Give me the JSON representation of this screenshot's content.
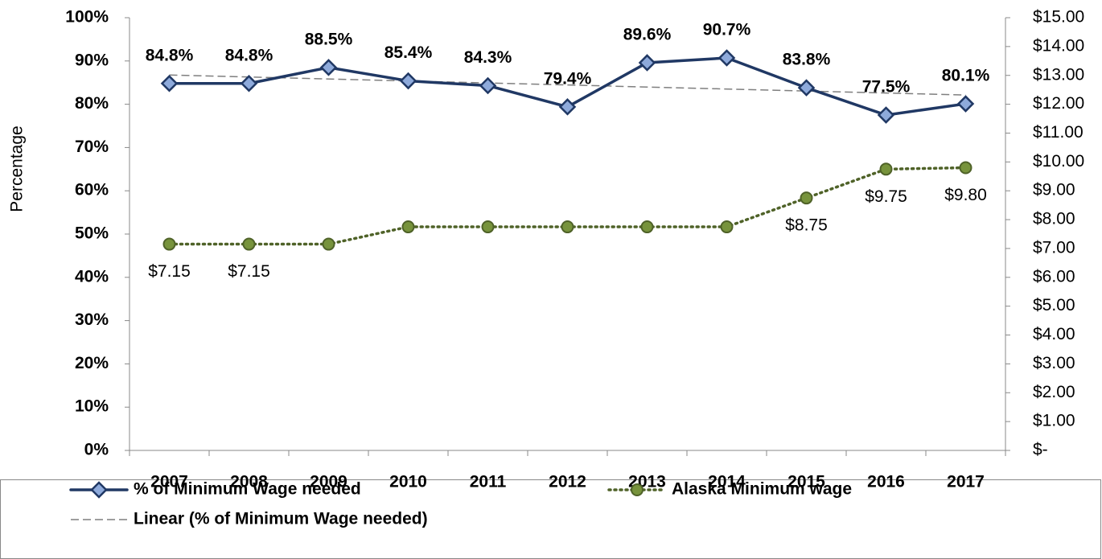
{
  "chart_data": {
    "type": "line",
    "y_axis_label": "Percentage",
    "categories": [
      "2007",
      "2008",
      "2009",
      "2010",
      "2011",
      "2012",
      "2013",
      "2014",
      "2015",
      "2016",
      "2017"
    ],
    "series": [
      {
        "name": "% of Minimum Wage needed",
        "color": "#203864",
        "marker_fill": "#8eaadb",
        "values": [
          84.8,
          84.8,
          88.5,
          85.4,
          84.3,
          79.4,
          89.6,
          90.7,
          83.8,
          77.5,
          80.1
        ],
        "value_labels": [
          "84.8%",
          "84.8%",
          "88.5%",
          "85.4%",
          "84.3%",
          "79.4%",
          "89.6%",
          "90.7%",
          "83.8%",
          "77.5%",
          "80.1%"
        ]
      },
      {
        "name": "Alaska Minimum wage",
        "color": "#4f6228",
        "marker_fill": "#77933c",
        "axis": "y2",
        "values": [
          7.15,
          7.15,
          7.15,
          7.75,
          7.75,
          7.75,
          7.75,
          7.75,
          8.75,
          9.75,
          9.8
        ],
        "value_labels": [
          "$7.15",
          "$7.15",
          null,
          null,
          null,
          null,
          null,
          null,
          "$8.75",
          "$9.75",
          "$9.80"
        ]
      }
    ],
    "trendline": {
      "name": "Linear (% of Minimum Wage needed)",
      "type": "linear",
      "color": "#7f7f7f"
    },
    "ylim": [
      0,
      100
    ],
    "yticks": [
      {
        "value": 0,
        "label": "0%"
      },
      {
        "value": 10,
        "label": "10%"
      },
      {
        "value": 20,
        "label": "20%"
      },
      {
        "value": 30,
        "label": "30%"
      },
      {
        "value": 40,
        "label": "40%"
      },
      {
        "value": 50,
        "label": "50%"
      },
      {
        "value": 60,
        "label": "60%"
      },
      {
        "value": 70,
        "label": "70%"
      },
      {
        "value": 80,
        "label": "80%"
      },
      {
        "value": 90,
        "label": "90%"
      },
      {
        "value": 100,
        "label": "100%"
      }
    ],
    "y2lim": [
      0,
      15
    ],
    "y2ticks": [
      {
        "value": 0,
        "label": "$-"
      },
      {
        "value": 1,
        "label": "$1.00"
      },
      {
        "value": 2,
        "label": "$2.00"
      },
      {
        "value": 3,
        "label": "$3.00"
      },
      {
        "value": 4,
        "label": "$4.00"
      },
      {
        "value": 5,
        "label": "$5.00"
      },
      {
        "value": 6,
        "label": "$6.00"
      },
      {
        "value": 7,
        "label": "$7.00"
      },
      {
        "value": 8,
        "label": "$8.00"
      },
      {
        "value": 9,
        "label": "$9.00"
      },
      {
        "value": 10,
        "label": "$10.00"
      },
      {
        "value": 11,
        "label": "$11.00"
      },
      {
        "value": 12,
        "label": "$12.00"
      },
      {
        "value": 13,
        "label": "$13.00"
      },
      {
        "value": 14,
        "label": "$14.00"
      },
      {
        "value": 15,
        "label": "$15.00"
      }
    ],
    "grid": false
  }
}
